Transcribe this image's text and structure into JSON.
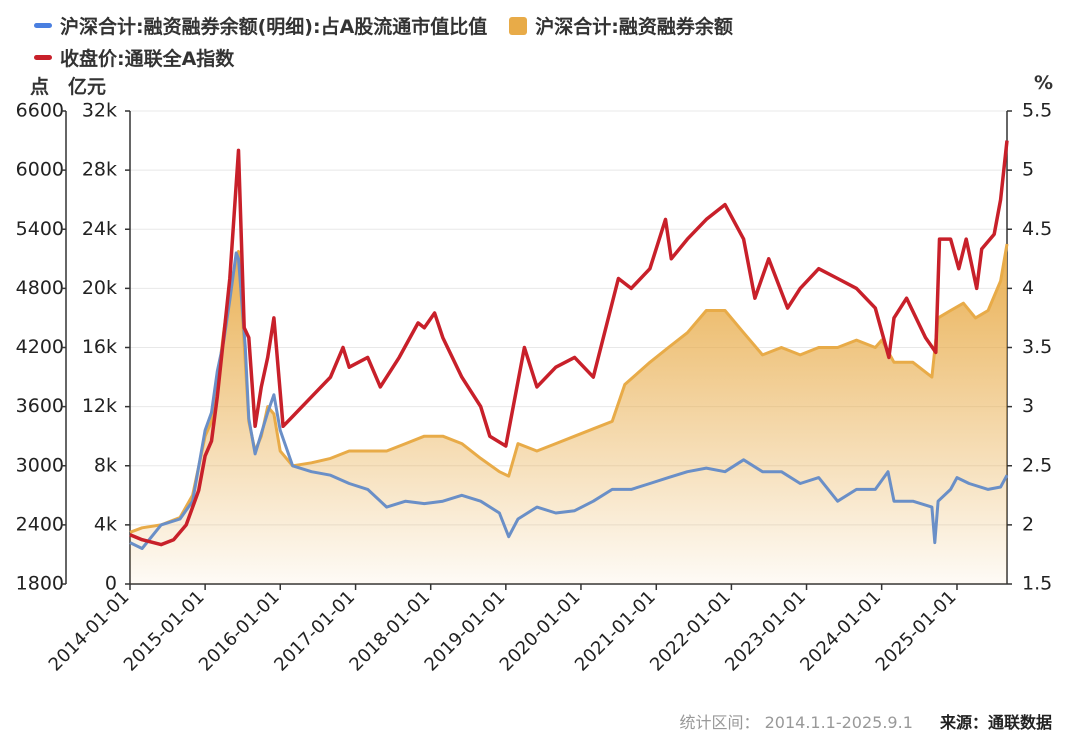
{
  "legend": {
    "ratio_label": "沪深合计:融资融券余额(明细):占A股流通市值比值",
    "balance_label": "沪深合计:融资融券余额",
    "index_label": "收盘价:通联全A指数"
  },
  "axis_titles": {
    "left_outer": "点",
    "left_inner": "亿元",
    "right": "%"
  },
  "footer": {
    "range": "统计区间：  2014.1.1-2025.9.1",
    "source": "来源：通联数据"
  },
  "colors": {
    "ratio": "#6a8fc7",
    "ratio_bright": "#4a7fe0",
    "balance": "#e8ab48",
    "index": "#c8202a",
    "grid": "#e8e8e8",
    "axis": "#333333"
  },
  "chart_data": {
    "type": "line",
    "title": "",
    "x_ticks": [
      "2014-01-01",
      "2015-01-01",
      "2016-01-01",
      "2017-01-01",
      "2018-01-01",
      "2019-01-01",
      "2020-01-01",
      "2021-01-01",
      "2022-01-01",
      "2023-01-01",
      "2024-01-01",
      "2025-01-01"
    ],
    "x_range": [
      "2014-01-01",
      "2025-09-01"
    ],
    "axes": {
      "left_outer": {
        "label": "点",
        "ticks": [
          1800,
          2400,
          3000,
          3600,
          4200,
          4800,
          5400,
          6000,
          6600
        ],
        "range": [
          1800,
          6600
        ]
      },
      "left_inner": {
        "label": "亿元",
        "ticks": [
          "0",
          "4k",
          "8k",
          "12k",
          "16k",
          "20k",
          "24k",
          "28k",
          "32k"
        ],
        "range": [
          0,
          32000
        ]
      },
      "right": {
        "label": "%",
        "ticks": [
          "1.5",
          "2",
          "2.5",
          "3",
          "3.5",
          "4",
          "4.5",
          "5",
          "5.5"
        ],
        "range": [
          1.5,
          5.5
        ]
      }
    },
    "grid": true,
    "legend_position": "top-left",
    "series": [
      {
        "name": "沪深合计:融资融券余额(明细):占A股流通市值比值",
        "axis": "right",
        "style": "line",
        "points": [
          [
            "2014-01-01",
            1.85
          ],
          [
            "2014-03-01",
            1.8
          ],
          [
            "2014-06-01",
            2.0
          ],
          [
            "2014-09-01",
            2.05
          ],
          [
            "2014-11-01",
            2.2
          ],
          [
            "2015-01-01",
            2.8
          ],
          [
            "2015-02-01",
            2.95
          ],
          [
            "2015-03-01",
            3.3
          ],
          [
            "2015-04-01",
            3.55
          ],
          [
            "2015-05-01",
            3.9
          ],
          [
            "2015-06-01",
            4.3
          ],
          [
            "2015-06-12",
            4.25
          ],
          [
            "2015-07-15",
            3.5
          ],
          [
            "2015-08-01",
            2.9
          ],
          [
            "2015-09-01",
            2.6
          ],
          [
            "2015-11-01",
            2.95
          ],
          [
            "2015-12-01",
            3.1
          ],
          [
            "2016-01-01",
            2.8
          ],
          [
            "2016-03-01",
            2.5
          ],
          [
            "2016-06-01",
            2.45
          ],
          [
            "2016-09-01",
            2.42
          ],
          [
            "2016-12-01",
            2.35
          ],
          [
            "2017-03-01",
            2.3
          ],
          [
            "2017-06-01",
            2.15
          ],
          [
            "2017-09-01",
            2.2
          ],
          [
            "2017-12-01",
            2.18
          ],
          [
            "2018-03-01",
            2.2
          ],
          [
            "2018-06-01",
            2.25
          ],
          [
            "2018-09-01",
            2.2
          ],
          [
            "2018-12-01",
            2.1
          ],
          [
            "2019-01-15",
            1.9
          ],
          [
            "2019-03-01",
            2.05
          ],
          [
            "2019-06-01",
            2.15
          ],
          [
            "2019-09-01",
            2.1
          ],
          [
            "2019-12-01",
            2.12
          ],
          [
            "2020-03-01",
            2.2
          ],
          [
            "2020-06-01",
            2.3
          ],
          [
            "2020-09-01",
            2.3
          ],
          [
            "2020-12-01",
            2.35
          ],
          [
            "2021-03-01",
            2.4
          ],
          [
            "2021-06-01",
            2.45
          ],
          [
            "2021-09-01",
            2.48
          ],
          [
            "2021-12-01",
            2.45
          ],
          [
            "2022-03-01",
            2.55
          ],
          [
            "2022-06-01",
            2.45
          ],
          [
            "2022-09-01",
            2.45
          ],
          [
            "2022-12-01",
            2.35
          ],
          [
            "2023-03-01",
            2.4
          ],
          [
            "2023-06-01",
            2.2
          ],
          [
            "2023-09-01",
            2.3
          ],
          [
            "2023-12-01",
            2.3
          ],
          [
            "2024-02-01",
            2.45
          ],
          [
            "2024-03-01",
            2.2
          ],
          [
            "2024-06-01",
            2.2
          ],
          [
            "2024-09-01",
            2.15
          ],
          [
            "2024-09-15",
            1.85
          ],
          [
            "2024-10-01",
            2.2
          ],
          [
            "2024-12-01",
            2.3
          ],
          [
            "2025-01-01",
            2.4
          ],
          [
            "2025-03-01",
            2.35
          ],
          [
            "2025-06-01",
            2.3
          ],
          [
            "2025-08-01",
            2.32
          ],
          [
            "2025-09-01",
            2.42
          ]
        ]
      },
      {
        "name": "沪深合计:融资融券余额",
        "axis": "left_inner",
        "style": "area",
        "points": [
          [
            "2014-01-01",
            3500
          ],
          [
            "2014-03-01",
            3800
          ],
          [
            "2014-06-01",
            4000
          ],
          [
            "2014-09-01",
            4500
          ],
          [
            "2014-11-01",
            6000
          ],
          [
            "2015-01-01",
            10000
          ],
          [
            "2015-02-01",
            11000
          ],
          [
            "2015-03-01",
            13500
          ],
          [
            "2015-04-01",
            17000
          ],
          [
            "2015-05-01",
            20000
          ],
          [
            "2015-06-12",
            22500
          ],
          [
            "2015-07-15",
            15000
          ],
          [
            "2015-08-01",
            11000
          ],
          [
            "2015-09-01",
            9000
          ],
          [
            "2015-10-01",
            10000
          ],
          [
            "2015-11-01",
            12000
          ],
          [
            "2015-12-01",
            11500
          ],
          [
            "2016-01-01",
            9000
          ],
          [
            "2016-03-01",
            8000
          ],
          [
            "2016-06-01",
            8200
          ],
          [
            "2016-09-01",
            8500
          ],
          [
            "2016-12-01",
            9000
          ],
          [
            "2017-03-01",
            9000
          ],
          [
            "2017-06-01",
            9000
          ],
          [
            "2017-09-01",
            9500
          ],
          [
            "2017-12-01",
            10000
          ],
          [
            "2018-03-01",
            10000
          ],
          [
            "2018-06-01",
            9500
          ],
          [
            "2018-09-01",
            8500
          ],
          [
            "2018-12-01",
            7600
          ],
          [
            "2019-01-15",
            7300
          ],
          [
            "2019-03-01",
            9500
          ],
          [
            "2019-06-01",
            9000
          ],
          [
            "2019-09-01",
            9500
          ],
          [
            "2019-12-01",
            10000
          ],
          [
            "2020-03-01",
            10500
          ],
          [
            "2020-06-01",
            11000
          ],
          [
            "2020-08-01",
            13500
          ],
          [
            "2020-12-01",
            15000
          ],
          [
            "2021-03-01",
            16000
          ],
          [
            "2021-06-01",
            17000
          ],
          [
            "2021-09-01",
            18500
          ],
          [
            "2021-12-01",
            18500
          ],
          [
            "2022-03-01",
            17000
          ],
          [
            "2022-06-01",
            15500
          ],
          [
            "2022-09-01",
            16000
          ],
          [
            "2022-12-01",
            15500
          ],
          [
            "2023-03-01",
            16000
          ],
          [
            "2023-06-01",
            16000
          ],
          [
            "2023-09-01",
            16500
          ],
          [
            "2023-12-01",
            16000
          ],
          [
            "2024-01-01",
            16500
          ],
          [
            "2024-03-01",
            15000
          ],
          [
            "2024-06-01",
            15000
          ],
          [
            "2024-09-01",
            14000
          ],
          [
            "2024-10-01",
            18000
          ],
          [
            "2024-12-01",
            18500
          ],
          [
            "2025-02-01",
            19000
          ],
          [
            "2025-04-01",
            18000
          ],
          [
            "2025-06-01",
            18500
          ],
          [
            "2025-08-01",
            20500
          ],
          [
            "2025-09-01",
            23000
          ]
        ]
      },
      {
        "name": "收盘价:通联全A指数",
        "axis": "left_outer",
        "style": "line",
        "points": [
          [
            "2014-01-01",
            2300
          ],
          [
            "2014-03-01",
            2250
          ],
          [
            "2014-06-01",
            2200
          ],
          [
            "2014-08-01",
            2250
          ],
          [
            "2014-10-01",
            2400
          ],
          [
            "2014-12-01",
            2750
          ],
          [
            "2015-01-01",
            3100
          ],
          [
            "2015-02-01",
            3250
          ],
          [
            "2015-03-01",
            3700
          ],
          [
            "2015-04-01",
            4300
          ],
          [
            "2015-05-01",
            4900
          ],
          [
            "2015-06-12",
            6200
          ],
          [
            "2015-07-10",
            4400
          ],
          [
            "2015-08-01",
            4300
          ],
          [
            "2015-09-01",
            3400
          ],
          [
            "2015-10-01",
            3800
          ],
          [
            "2015-11-01",
            4100
          ],
          [
            "2015-12-01",
            4500
          ],
          [
            "2016-01-15",
            3400
          ],
          [
            "2016-03-01",
            3500
          ],
          [
            "2016-06-01",
            3700
          ],
          [
            "2016-09-01",
            3900
          ],
          [
            "2016-11-01",
            4200
          ],
          [
            "2016-12-01",
            4000
          ],
          [
            "2017-03-01",
            4100
          ],
          [
            "2017-05-01",
            3800
          ],
          [
            "2017-08-01",
            4100
          ],
          [
            "2017-11-01",
            4450
          ],
          [
            "2017-12-01",
            4400
          ],
          [
            "2018-01-20",
            4550
          ],
          [
            "2018-03-01",
            4300
          ],
          [
            "2018-06-01",
            3900
          ],
          [
            "2018-09-01",
            3600
          ],
          [
            "2018-10-15",
            3300
          ],
          [
            "2019-01-01",
            3200
          ],
          [
            "2019-04-01",
            4200
          ],
          [
            "2019-06-01",
            3800
          ],
          [
            "2019-09-01",
            4000
          ],
          [
            "2019-12-01",
            4100
          ],
          [
            "2020-03-01",
            3900
          ],
          [
            "2020-07-01",
            4900
          ],
          [
            "2020-09-01",
            4800
          ],
          [
            "2020-12-01",
            5000
          ],
          [
            "2021-02-15",
            5500
          ],
          [
            "2021-03-15",
            5100
          ],
          [
            "2021-06-01",
            5300
          ],
          [
            "2021-09-01",
            5500
          ],
          [
            "2021-12-01",
            5650
          ],
          [
            "2022-03-01",
            5300
          ],
          [
            "2022-04-25",
            4700
          ],
          [
            "2022-07-01",
            5100
          ],
          [
            "2022-10-01",
            4600
          ],
          [
            "2022-12-01",
            4800
          ],
          [
            "2023-03-01",
            5000
          ],
          [
            "2023-06-01",
            4900
          ],
          [
            "2023-09-01",
            4800
          ],
          [
            "2023-12-01",
            4600
          ],
          [
            "2024-02-05",
            4100
          ],
          [
            "2024-03-01",
            4500
          ],
          [
            "2024-05-01",
            4700
          ],
          [
            "2024-08-01",
            4300
          ],
          [
            "2024-09-20",
            4150
          ],
          [
            "2024-10-08",
            5300
          ],
          [
            "2024-12-01",
            5300
          ],
          [
            "2025-01-10",
            5000
          ],
          [
            "2025-02-15",
            5300
          ],
          [
            "2025-04-07",
            4800
          ],
          [
            "2025-05-01",
            5200
          ],
          [
            "2025-07-01",
            5350
          ],
          [
            "2025-08-01",
            5700
          ],
          [
            "2025-09-01",
            6300
          ]
        ]
      }
    ]
  }
}
